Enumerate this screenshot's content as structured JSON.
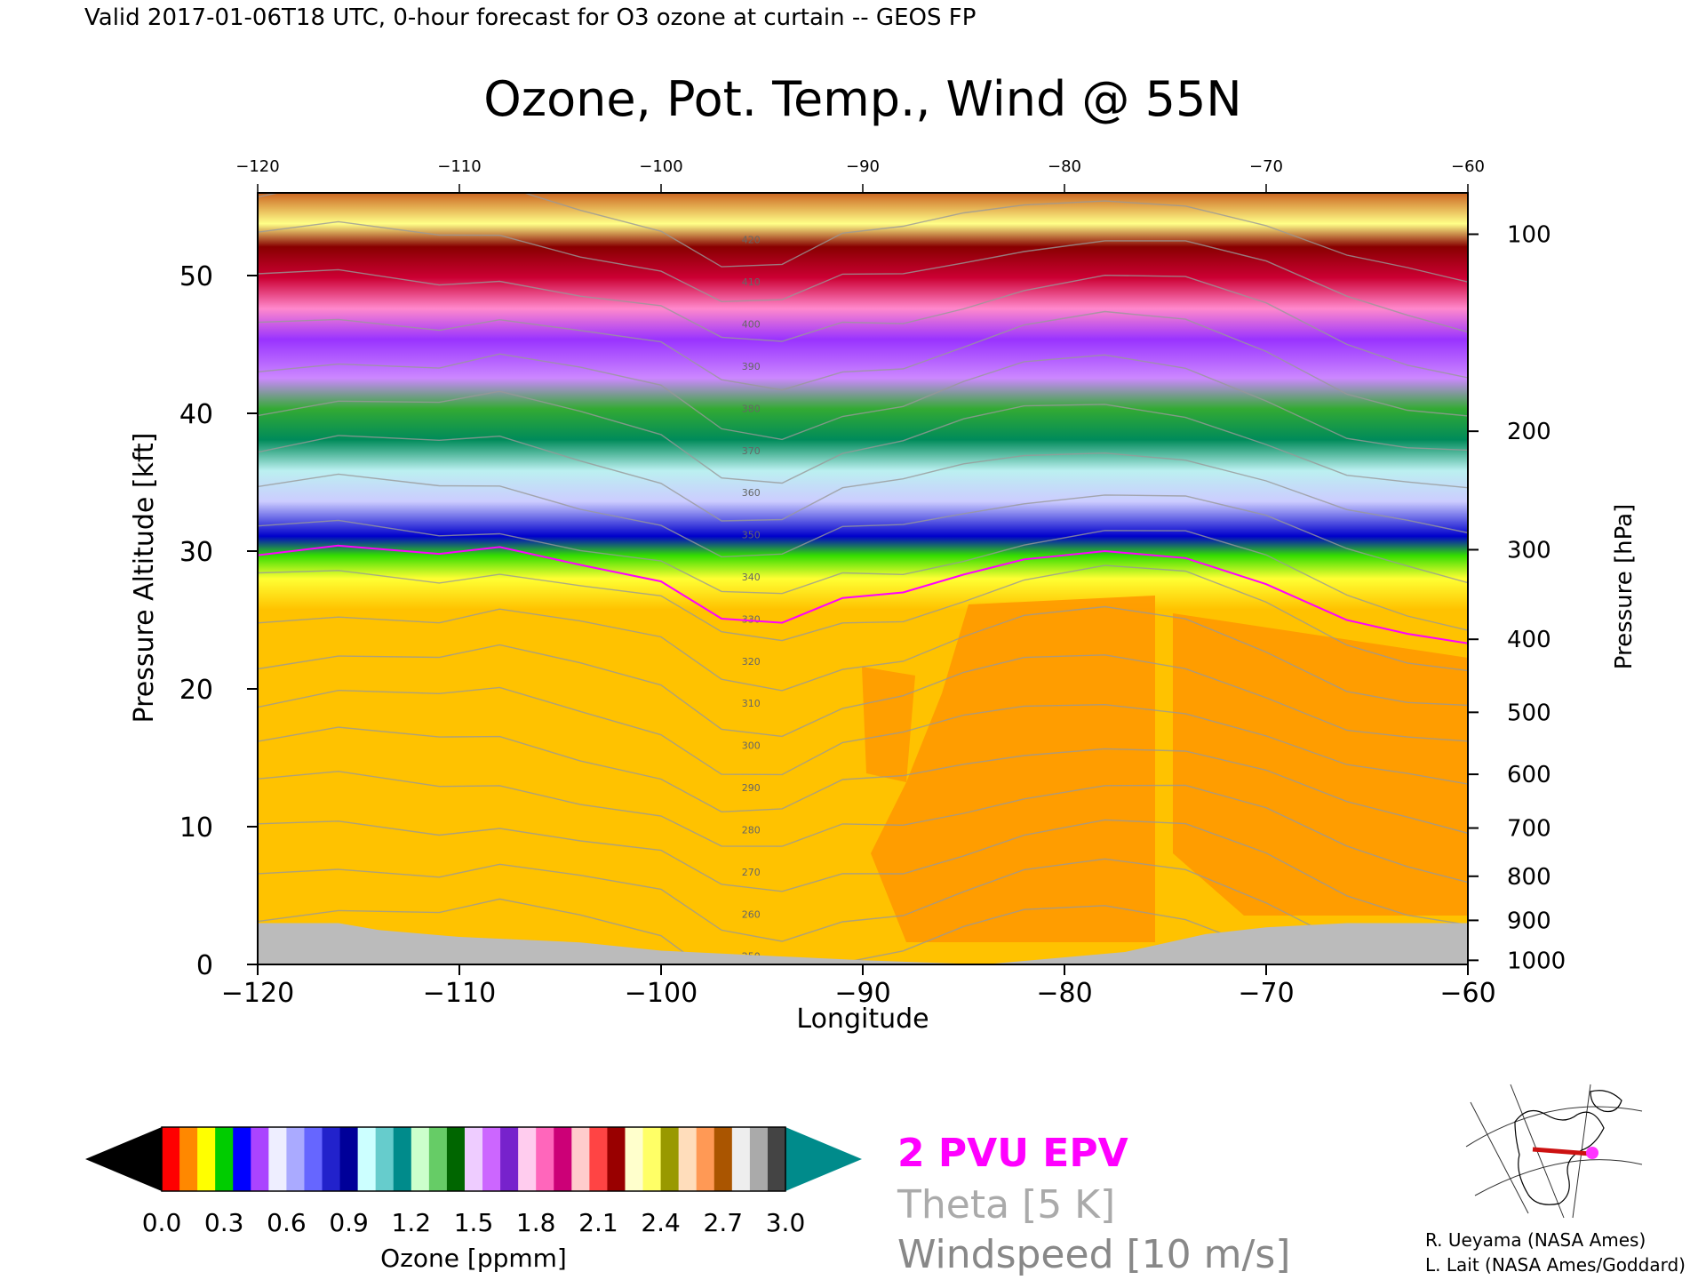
{
  "header": {
    "valid_line": "Valid 2017-01-06T18 UTC, 0-hour forecast for O3 ozone at curtain -- GEOS FP"
  },
  "chart_data": {
    "type": "heatmap",
    "title": "Ozone, Pot. Temp., Wind @ 55N",
    "xlabel": "Longitude",
    "ylabel": "Pressure Altitude [kft]",
    "y2label": "Pressure [hPa]",
    "xlim": [
      -120,
      -60
    ],
    "ylim": [
      0,
      56
    ],
    "x_ticks": [
      -120,
      -110,
      -100,
      -90,
      -80,
      -70,
      -60
    ],
    "x_tick_labels": [
      "−120",
      "−110",
      "−100",
      "−90",
      "−80",
      "−70",
      "−60"
    ],
    "top_tick_labels": [
      "−120",
      "−110",
      "−100",
      "−90",
      "−80",
      "−70",
      "−60"
    ],
    "y_ticks": [
      0,
      10,
      20,
      30,
      40,
      50
    ],
    "y_tick_labels": [
      "0",
      "10",
      "20",
      "30",
      "40",
      "50"
    ],
    "pressure_ticks": [
      {
        "p": 100,
        "kft": 53.0
      },
      {
        "p": 200,
        "kft": 38.7
      },
      {
        "p": 300,
        "kft": 30.1
      },
      {
        "p": 400,
        "kft": 23.6
      },
      {
        "p": 500,
        "kft": 18.3
      },
      {
        "p": 600,
        "kft": 13.8
      },
      {
        "p": 700,
        "kft": 9.9
      },
      {
        "p": 800,
        "kft": 6.4
      },
      {
        "p": 900,
        "kft": 3.2
      },
      {
        "p": 1000,
        "kft": 0.3
      }
    ],
    "tropopause_kft": [
      {
        "lon": -120,
        "kft": 29.7
      },
      {
        "lon": -116,
        "kft": 30.4
      },
      {
        "lon": -111,
        "kft": 29.8
      },
      {
        "lon": -108,
        "kft": 30.3
      },
      {
        "lon": -104,
        "kft": 29.0
      },
      {
        "lon": -100,
        "kft": 27.8
      },
      {
        "lon": -97,
        "kft": 25.1
      },
      {
        "lon": -94,
        "kft": 24.8
      },
      {
        "lon": -91,
        "kft": 26.6
      },
      {
        "lon": -88,
        "kft": 27.0
      },
      {
        "lon": -85,
        "kft": 28.3
      },
      {
        "lon": -82,
        "kft": 29.4
      },
      {
        "lon": -78,
        "kft": 30.0
      },
      {
        "lon": -74,
        "kft": 29.5
      },
      {
        "lon": -70,
        "kft": 27.6
      },
      {
        "lon": -66,
        "kft": 25.0
      },
      {
        "lon": -63,
        "kft": 24.0
      },
      {
        "lon": -60,
        "kft": 23.3
      }
    ],
    "terrain_kft": [
      {
        "lon": -120,
        "kft": 3.0
      },
      {
        "lon": -116,
        "kft": 3.0
      },
      {
        "lon": -114,
        "kft": 2.5
      },
      {
        "lon": -110,
        "kft": 2.0
      },
      {
        "lon": -104,
        "kft": 1.6
      },
      {
        "lon": -100,
        "kft": 1.0
      },
      {
        "lon": -90,
        "kft": 0.3
      },
      {
        "lon": -84,
        "kft": 0.0
      },
      {
        "lon": -77,
        "kft": 0.9
      },
      {
        "lon": -73,
        "kft": 2.2
      },
      {
        "lon": -70,
        "kft": 2.7
      },
      {
        "lon": -66,
        "kft": 3.0
      },
      {
        "lon": -60,
        "kft": 3.0
      }
    ],
    "theta_labels": [
      "420",
      "410",
      "400",
      "390",
      "380",
      "370",
      "360",
      "350",
      "340",
      "330",
      "320",
      "310",
      "300",
      "290",
      "280",
      "270",
      "260",
      "250"
    ],
    "colorbar": {
      "label": "Ozone [ppmm]",
      "ticks": [
        "0.0",
        "0.3",
        "0.6",
        "0.9",
        "1.2",
        "1.5",
        "1.8",
        "2.1",
        "2.4",
        "2.7",
        "3.0"
      ],
      "under_color": "#000000",
      "over_color": "#008b8b"
    }
  },
  "legend": {
    "epv_label": "2 PVU EPV",
    "epv_color": "#ff00ff",
    "theta_label": "Theta [5 K]",
    "theta_color": "#aaaaaa",
    "wind_label": "Windspeed [10 m/s]",
    "wind_color": "#888888"
  },
  "map_inset": {
    "marker_color": "#ff33ff",
    "track_color": "#cc1111"
  },
  "credits": {
    "line1": "R. Ueyama (NASA Ames)",
    "line2": "L. Lait (NASA Ames/Goddard)"
  }
}
